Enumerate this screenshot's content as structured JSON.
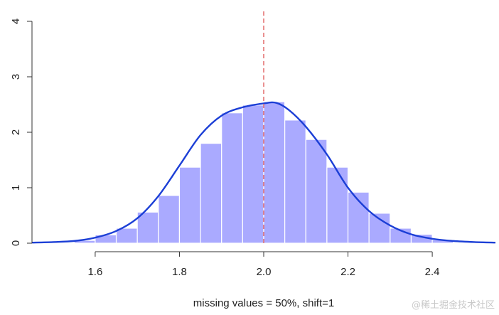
{
  "chart_data": {
    "type": "bar",
    "subtype": "histogram-with-density",
    "title": "",
    "xlabel": "missing values = 50%, shift=1",
    "ylabel": "",
    "xlim": [
      1.45,
      2.55
    ],
    "ylim": [
      0,
      4
    ],
    "x_ticks": [
      "1.6",
      "1.8",
      "2.0",
      "2.2",
      "2.4"
    ],
    "y_ticks": [
      "0",
      "1",
      "2",
      "3",
      "4"
    ],
    "bin_width": 0.05,
    "bins": [
      {
        "start": 1.55,
        "value": 0.05
      },
      {
        "start": 1.6,
        "value": 0.15
      },
      {
        "start": 1.65,
        "value": 0.27
      },
      {
        "start": 1.7,
        "value": 0.56
      },
      {
        "start": 1.75,
        "value": 0.86
      },
      {
        "start": 1.8,
        "value": 1.37
      },
      {
        "start": 1.85,
        "value": 1.8
      },
      {
        "start": 1.9,
        "value": 2.35
      },
      {
        "start": 1.95,
        "value": 2.49
      },
      {
        "start": 2.0,
        "value": 2.55
      },
      {
        "start": 2.05,
        "value": 2.22
      },
      {
        "start": 2.1,
        "value": 1.87
      },
      {
        "start": 2.15,
        "value": 1.37
      },
      {
        "start": 2.2,
        "value": 0.92
      },
      {
        "start": 2.25,
        "value": 0.54
      },
      {
        "start": 2.3,
        "value": 0.27
      },
      {
        "start": 2.35,
        "value": 0.16
      },
      {
        "start": 2.4,
        "value": 0.06
      }
    ],
    "density": {
      "name": "density",
      "x": [
        1.45,
        1.5,
        1.55,
        1.6,
        1.65,
        1.7,
        1.75,
        1.8,
        1.85,
        1.9,
        1.95,
        2.0,
        2.03,
        2.06,
        2.1,
        2.15,
        2.2,
        2.25,
        2.3,
        2.35,
        2.4,
        2.45,
        2.5,
        2.55
      ],
      "y": [
        0.01,
        0.02,
        0.04,
        0.1,
        0.22,
        0.45,
        0.85,
        1.4,
        1.95,
        2.3,
        2.45,
        2.52,
        2.53,
        2.4,
        2.1,
        1.6,
        1.0,
        0.58,
        0.32,
        0.16,
        0.08,
        0.04,
        0.02,
        0.01
      ]
    },
    "reference_line": {
      "x": 2.0,
      "style": "dashed"
    },
    "colors": {
      "bars": "#aaaaff",
      "bar_edge": "#ffffff",
      "density": "#1c3fd6",
      "reference_line": "#e06060",
      "axis": "#333333"
    }
  },
  "watermark": "@稀土掘金技术社区"
}
